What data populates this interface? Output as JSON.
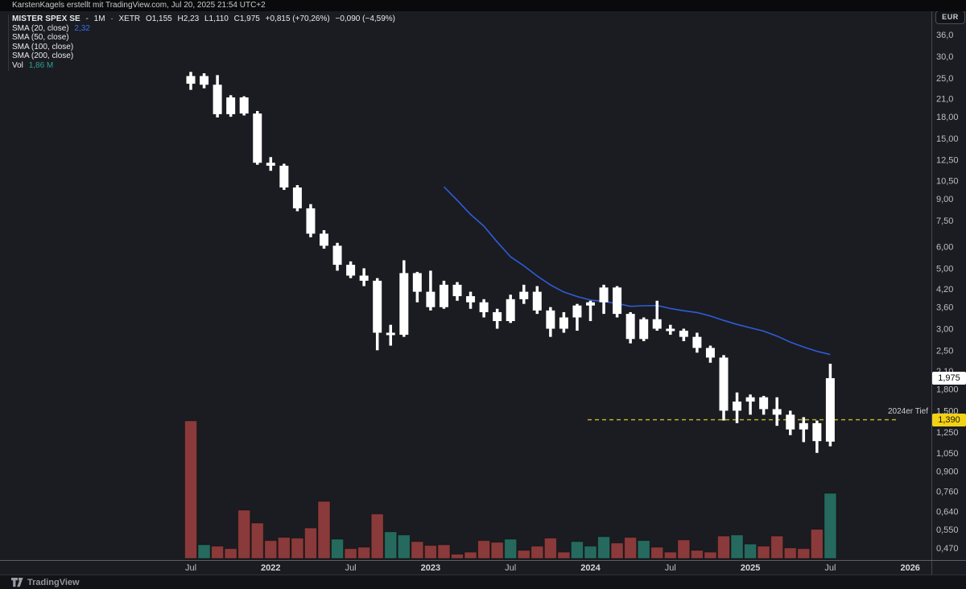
{
  "topbar": {
    "attribution": "KarstenKagels erstellt mit TradingView.com, Jul 20, 2025 21:54 UTC+2"
  },
  "legend": {
    "symbol": "MISTER SPEX SE",
    "sep1": "-",
    "timeframe": "1M",
    "sep2": "·",
    "exchange": "XETR",
    "open": "O1,155",
    "high": "H2,23",
    "low": "L1,110",
    "close": "C1,975",
    "change1": "+0,815 (+70,26%)",
    "change2": "−0,090 (−4,59%)",
    "indicators": [
      {
        "label": "SMA (20, close)",
        "value": "2,32"
      },
      {
        "label": "SMA (50, close)",
        "value": ""
      },
      {
        "label": "SMA (100, close)",
        "value": ""
      },
      {
        "label": "SMA (200, close)",
        "value": ""
      }
    ],
    "vol_label": "Vol",
    "vol_value": "1,86 M"
  },
  "price_axis": {
    "currency": "EUR",
    "last_price_label": "1,975",
    "level_label": "1,390",
    "ticks": [
      {
        "text": "36,0",
        "value": 36
      },
      {
        "text": "30,0",
        "value": 30
      },
      {
        "text": "25,0",
        "value": 25
      },
      {
        "text": "21,0",
        "value": 21
      },
      {
        "text": "18,00",
        "value": 18
      },
      {
        "text": "15,00",
        "value": 15
      },
      {
        "text": "12,50",
        "value": 12.5
      },
      {
        "text": "10,50",
        "value": 10.5
      },
      {
        "text": "9,00",
        "value": 9
      },
      {
        "text": "7,50",
        "value": 7.5
      },
      {
        "text": "6,00",
        "value": 6
      },
      {
        "text": "5,00",
        "value": 5
      },
      {
        "text": "4,20",
        "value": 4.2
      },
      {
        "text": "3,60",
        "value": 3.6
      },
      {
        "text": "3,00",
        "value": 3
      },
      {
        "text": "2,50",
        "value": 2.5
      },
      {
        "text": "2,10",
        "value": 2.1
      },
      {
        "text": "1,800",
        "value": 1.8
      },
      {
        "text": "1,500",
        "value": 1.5
      },
      {
        "text": "1,250",
        "value": 1.25
      },
      {
        "text": "1,050",
        "value": 1.05
      },
      {
        "text": "0,900",
        "value": 0.9
      },
      {
        "text": "0,760",
        "value": 0.76
      },
      {
        "text": "0,640",
        "value": 0.64
      },
      {
        "text": "0,550",
        "value": 0.55
      },
      {
        "text": "0,470",
        "value": 0.47
      }
    ]
  },
  "time_axis": {
    "ticks": [
      {
        "text": "Jul",
        "index": 0,
        "bold": false
      },
      {
        "text": "2022",
        "index": 6,
        "bold": true
      },
      {
        "text": "Jul",
        "index": 12,
        "bold": false
      },
      {
        "text": "2023",
        "index": 18,
        "bold": true
      },
      {
        "text": "Jul",
        "index": 24,
        "bold": false
      },
      {
        "text": "2024",
        "index": 30,
        "bold": true
      },
      {
        "text": "Jul",
        "index": 36,
        "bold": false
      },
      {
        "text": "2025",
        "index": 42,
        "bold": true
      },
      {
        "text": "Jul",
        "index": 48,
        "bold": false
      },
      {
        "text": "2026",
        "index": 54,
        "bold": true
      }
    ]
  },
  "annotation": {
    "text": "2024er Tief",
    "price": 1.39
  },
  "footer": {
    "brand": "TradingView"
  },
  "colors": {
    "background": "#1a1c21",
    "candle": "#ffffff",
    "sma_line": "#2f5cd8",
    "volume_down": "#8a3a3a",
    "volume_up": "#266a5f",
    "level_yellow": "#bfae28",
    "axis_text": "#bcbfc6",
    "axis_text_bold": "#d6d8dc",
    "axis_line": "#5a5e66",
    "pane_separator": "#44474f"
  },
  "chart_data": {
    "type": "candlestick",
    "title": "MISTER SPEX SE · 1M · XETR",
    "currency": "EUR",
    "scale": "log",
    "legend_note": "blue line = SMA(20,close), current value 2,32; volume pane below",
    "ylim": [
      0.44,
      40
    ],
    "months": [
      "2021-07",
      "2021-08",
      "2021-09",
      "2021-10",
      "2021-11",
      "2021-12",
      "2022-01",
      "2022-02",
      "2022-03",
      "2022-04",
      "2022-05",
      "2022-06",
      "2022-07",
      "2022-08",
      "2022-09",
      "2022-10",
      "2022-11",
      "2022-12",
      "2023-01",
      "2023-02",
      "2023-03",
      "2023-04",
      "2023-05",
      "2023-06",
      "2023-07",
      "2023-08",
      "2023-09",
      "2023-10",
      "2023-11",
      "2023-12",
      "2024-01",
      "2024-02",
      "2024-03",
      "2024-04",
      "2024-05",
      "2024-06",
      "2024-07",
      "2024-08",
      "2024-09",
      "2024-10",
      "2024-11",
      "2024-12",
      "2025-01",
      "2025-02",
      "2025-03",
      "2025-04",
      "2025-05",
      "2025-06",
      "2025-07"
    ],
    "ohlc": [
      [
        23.8,
        26.3,
        22.6,
        25.4
      ],
      [
        25.4,
        26.0,
        22.9,
        23.6
      ],
      [
        23.6,
        25.6,
        17.9,
        18.4
      ],
      [
        18.4,
        21.6,
        18.0,
        21.2
      ],
      [
        21.2,
        21.4,
        18.2,
        18.5
      ],
      [
        18.5,
        18.9,
        12.0,
        12.2
      ],
      [
        12.2,
        12.8,
        11.4,
        11.9
      ],
      [
        11.9,
        12.1,
        9.7,
        9.9
      ],
      [
        9.9,
        10.1,
        8.1,
        8.3
      ],
      [
        8.3,
        8.6,
        6.5,
        6.7
      ],
      [
        6.7,
        6.9,
        5.9,
        6.05
      ],
      [
        6.05,
        6.2,
        4.9,
        5.15
      ],
      [
        5.15,
        5.3,
        4.6,
        4.7
      ],
      [
        4.7,
        5.0,
        4.3,
        4.5
      ],
      [
        4.5,
        4.6,
        2.5,
        2.9
      ],
      [
        2.9,
        3.1,
        2.6,
        2.85
      ],
      [
        2.85,
        5.35,
        2.8,
        4.8
      ],
      [
        4.8,
        4.85,
        3.75,
        4.1
      ],
      [
        4.1,
        4.9,
        3.5,
        3.6
      ],
      [
        3.6,
        4.5,
        3.55,
        4.35
      ],
      [
        4.35,
        4.45,
        3.8,
        3.95
      ],
      [
        3.95,
        4.1,
        3.55,
        3.75
      ],
      [
        3.75,
        3.85,
        3.3,
        3.45
      ],
      [
        3.45,
        3.55,
        3.0,
        3.2
      ],
      [
        3.2,
        4.0,
        3.15,
        3.85
      ],
      [
        3.85,
        4.35,
        3.7,
        4.1
      ],
      [
        4.1,
        4.3,
        3.4,
        3.5
      ],
      [
        3.5,
        3.6,
        2.8,
        3.0
      ],
      [
        3.0,
        3.45,
        2.9,
        3.3
      ],
      [
        3.3,
        3.7,
        2.95,
        3.65
      ],
      [
        3.65,
        3.8,
        3.2,
        3.75
      ],
      [
        3.75,
        4.35,
        3.4,
        4.25
      ],
      [
        4.25,
        4.3,
        3.3,
        3.4
      ],
      [
        3.4,
        3.45,
        2.65,
        2.75
      ],
      [
        2.75,
        3.3,
        2.7,
        3.25
      ],
      [
        3.25,
        3.8,
        2.95,
        3.0
      ],
      [
        3.0,
        3.1,
        2.85,
        2.95
      ],
      [
        2.95,
        3.0,
        2.7,
        2.8
      ],
      [
        2.8,
        2.9,
        2.45,
        2.55
      ],
      [
        2.55,
        2.6,
        2.25,
        2.35
      ],
      [
        2.35,
        2.4,
        1.38,
        1.5
      ],
      [
        1.5,
        1.75,
        1.35,
        1.62
      ],
      [
        1.62,
        1.72,
        1.45,
        1.68
      ],
      [
        1.68,
        1.7,
        1.45,
        1.52
      ],
      [
        1.52,
        1.68,
        1.32,
        1.45
      ],
      [
        1.45,
        1.5,
        1.22,
        1.28
      ],
      [
        1.28,
        1.42,
        1.15,
        1.35
      ],
      [
        1.35,
        1.38,
        1.05,
        1.16
      ],
      [
        1.155,
        2.23,
        1.11,
        1.975
      ]
    ],
    "volume_millions": [
      3.93,
      0.39,
      0.35,
      0.28,
      1.38,
      1.01,
      0.51,
      0.6,
      0.58,
      0.87,
      1.63,
      0.55,
      0.28,
      0.32,
      1.27,
      0.76,
      0.67,
      0.48,
      0.37,
      0.39,
      0.12,
      0.18,
      0.51,
      0.46,
      0.55,
      0.23,
      0.35,
      0.58,
      0.18,
      0.48,
      0.35,
      0.62,
      0.44,
      0.6,
      0.51,
      0.32,
      0.18,
      0.53,
      0.23,
      0.18,
      0.64,
      0.67,
      0.41,
      0.35,
      0.64,
      0.3,
      0.28,
      0.83,
      1.86
    ],
    "volume_direction": [
      "down",
      "up",
      "down",
      "down",
      "down",
      "down",
      "down",
      "down",
      "down",
      "down",
      "down",
      "up",
      "down",
      "down",
      "down",
      "up",
      "up",
      "down",
      "down",
      "down",
      "down",
      "down",
      "down",
      "down",
      "up",
      "down",
      "down",
      "down",
      "down",
      "up",
      "up",
      "up",
      "down",
      "down",
      "up",
      "down",
      "down",
      "down",
      "down",
      "down",
      "down",
      "up",
      "up",
      "down",
      "down",
      "down",
      "down",
      "down",
      "up"
    ],
    "sma20_last_value": 2.32,
    "level_line_price": 1.39
  }
}
